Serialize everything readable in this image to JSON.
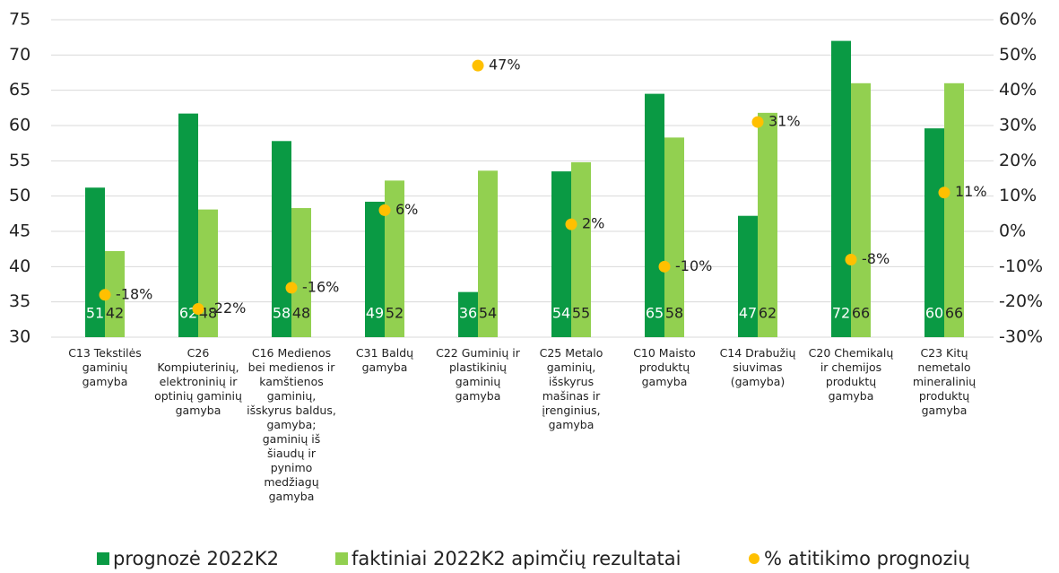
{
  "chart_data": {
    "type": "bar",
    "categories": [
      "C13 Tekstilės gaminių gamyba",
      "C26 Kompiuterinių, elektroninių ir optinių gaminių gamyba",
      "C16 Medienos bei medienos ir kamštienos gaminių, išskyrus baldus, gamyba; gaminių iš šiaudų ir pynimo medžiagų gamyba",
      "C31 Baldų gamyba",
      "C22 Guminių ir plastikinių gaminių gamyba",
      "C25 Metalo gaminių, išskyrus mašinas ir įrenginius, gamyba",
      "C10 Maisto produktų gamyba",
      "C14 Drabužių siuvimas (gamyba)",
      "C20 Chemikalų ir chemijos produktų gamyba",
      "C23 Kitų nemetalo mineralinių produktų gamyba"
    ],
    "series": [
      {
        "name": "prognozė 2022K2",
        "type": "bar",
        "color": "#0a9a44",
        "label_color": "#ffffff",
        "values": [
          51.2,
          61.7,
          57.8,
          49.2,
          36.4,
          53.5,
          64.5,
          47.2,
          72,
          59.6
        ],
        "value_labels": [
          "51",
          "62",
          "58",
          "49",
          "36",
          "54",
          "65",
          "47",
          "72",
          "60"
        ]
      },
      {
        "name": "faktiniai 2022K2 apimčių rezultatai",
        "type": "bar",
        "color": "#92d050",
        "label_color": "#222222",
        "values": [
          42.2,
          48.1,
          48.3,
          52.2,
          53.6,
          54.8,
          58.3,
          61.8,
          66,
          66
        ],
        "value_labels": [
          "42",
          "48",
          "48",
          "52",
          "54",
          "55",
          "58",
          "62",
          "66",
          "66"
        ]
      },
      {
        "name": "% atitikimo prognozių",
        "type": "scatter",
        "axis": "y2",
        "color": "#ffc000",
        "values": [
          -18,
          -22,
          -16,
          6,
          47,
          2,
          -10,
          31,
          -8,
          11
        ],
        "value_labels": [
          "-18%",
          "-22%",
          "-16%",
          "6%",
          "47%",
          "2%",
          "-10%",
          "31%",
          "-8%",
          "11%"
        ]
      }
    ],
    "ylim": [
      30,
      75
    ],
    "yticks": [
      30,
      35,
      40,
      45,
      50,
      55,
      60,
      65,
      70,
      75
    ],
    "y2lim": [
      -30,
      60
    ],
    "y2ticks": [
      {
        "value": -30,
        "label": "-30%"
      },
      {
        "value": -20,
        "label": "-20%"
      },
      {
        "value": -10,
        "label": "-10%"
      },
      {
        "value": 0,
        "label": "0%"
      },
      {
        "value": 10,
        "label": "10%"
      },
      {
        "value": 20,
        "label": "20%"
      },
      {
        "value": 30,
        "label": "30%"
      },
      {
        "value": 40,
        "label": "40%"
      },
      {
        "value": 50,
        "label": "50%"
      },
      {
        "value": 60,
        "label": "60%"
      }
    ],
    "grid": true,
    "legend": "bottom"
  }
}
